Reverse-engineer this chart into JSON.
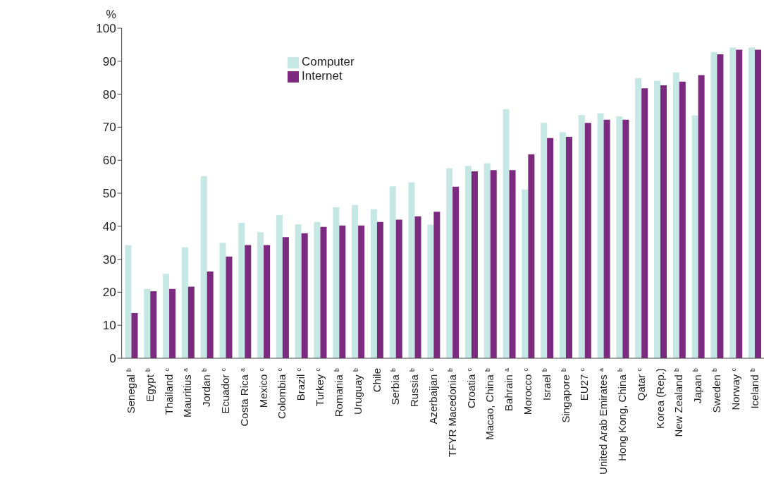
{
  "chart_data": {
    "type": "bar",
    "ylabel": "%",
    "categories": [
      "Senegal $^{b}$",
      "Egypt $^{b}$",
      "Thailand $^{c}$",
      "Mauritius $^{a}$",
      "Jordan $^{b}$",
      "Ecuador $^{c}$",
      "Costa Rica $^{a}$",
      "Mexico $^{c}$",
      "Colombia $^{c}$",
      "Brazil $^{c}$",
      "Turkey $^{c}$",
      "Romania $^{b}$",
      "Uruguay $^{b}$",
      "Chile",
      "Serbia $^{b}$",
      "Russia $^{b}$",
      "Azerbaijan $^{c}$",
      "TFYR Macedonia $^{b}$",
      "Croatia $^{c}$",
      "Macao, China $^{b}$",
      "Bahrain $^{a}$",
      "Morocco $^{c}$",
      "Israel $^{b}$",
      "Singapore $^{b}$",
      "EU27 $^{c}$",
      "United Arab Emirates $^{a}$",
      "Hong Kong, China $^{b}$",
      "Qatar $^{c}$",
      "Korea (Rep.)",
      "New Zealand $^{b}$",
      "Japan $^{b}$",
      "Sweden $^{b}$",
      "Norway $^{c}$",
      "Iceland $^{b}$"
    ],
    "series": [
      {
        "name": "Computer",
        "color": "#c5e8e4",
        "values": [
          34.3,
          21,
          25.6,
          33.6,
          55.2,
          35,
          41,
          38.2,
          43.4,
          40.6,
          41.3,
          45.8,
          46.5,
          45.2,
          52.1,
          53.3,
          40.5,
          57.6,
          58.3,
          59.1,
          75.5,
          51.1,
          71.3,
          68.5,
          73.7,
          74.2,
          73.3,
          84.9,
          84.1,
          86.6,
          73.6,
          92.8,
          94.2,
          94.2
        ]
      },
      {
        "name": "Internet",
        "color": "#7b2a7f",
        "values": [
          13.7,
          20.3,
          21,
          21.7,
          26.3,
          30.8,
          34.3,
          34.3,
          36.7,
          37.9,
          39.8,
          40.2,
          40.2,
          41.3,
          42,
          43,
          44.4,
          52,
          56.6,
          57,
          57,
          61.8,
          66.7,
          67.1,
          71.3,
          72.3,
          72.3,
          81.8,
          82.7,
          83.8,
          85.8,
          92.1,
          93.5,
          93.5
        ]
      }
    ],
    "ylim": [
      0,
      100
    ],
    "yticks": [
      0,
      10,
      20,
      30,
      40,
      50,
      60,
      70,
      80,
      90,
      100
    ],
    "grid": false,
    "legend": "top left"
  }
}
